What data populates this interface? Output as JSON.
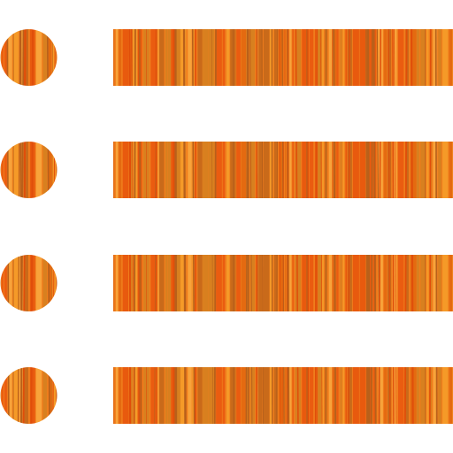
{
  "icon": {
    "name": "bulleted-list-icon",
    "rows": 4,
    "colors": {
      "background": "#ffffff",
      "base": "#f07d1c",
      "stripes": [
        "#e85a0e",
        "#f59a28",
        "#e46a10",
        "#c96a1a",
        "#f8a33a",
        "#ea5c10",
        "#d8801f"
      ]
    }
  }
}
